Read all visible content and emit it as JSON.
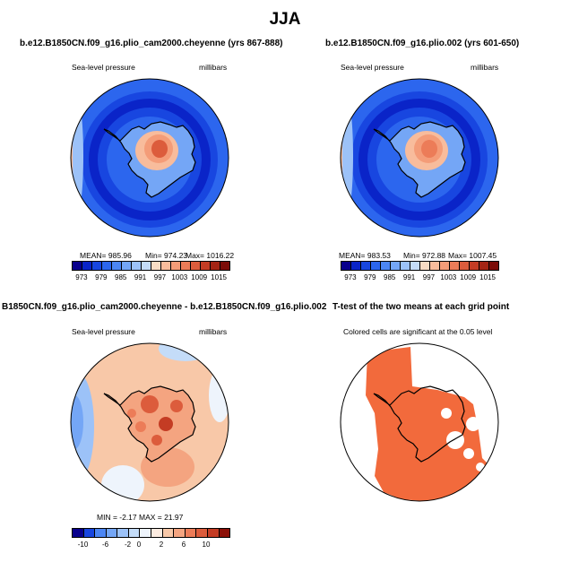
{
  "figure_title": "JJA",
  "chart_data": [
    {
      "type": "heatmap",
      "title": "b.e12.B1850CN.f09_g16.plio_cam2000.cheyenne (yrs 867-888)",
      "field": "Sea-level pressure",
      "units": "millibars",
      "stats": {
        "mean": "985.96",
        "min": "974.23",
        "max": "1016.22"
      },
      "stats_text": {
        "mean": "MEAN= 985.96",
        "min": "Min= 974.23",
        "max": "Max= 1016.22"
      },
      "colorbar_ticks": [
        "973",
        "979",
        "985",
        "991",
        "997",
        "1003",
        "1009",
        "1015"
      ],
      "levels": [
        970,
        973,
        976,
        979,
        982,
        985,
        988,
        991,
        994,
        997,
        1000,
        1003,
        1006,
        1009,
        1012,
        1015,
        1018
      ]
    },
    {
      "type": "heatmap",
      "title": "b.e12.B1850CN.f09_g16.plio.002 (yrs 601-650)",
      "field": "Sea-level pressure",
      "units": "millibars",
      "stats": {
        "mean": "983.53",
        "min": "972.88",
        "max": "1007.45"
      },
      "stats_text": {
        "mean": "MEAN= 983.53",
        "min": "Min= 972.88",
        "max": "Max= 1007.45"
      },
      "colorbar_ticks": [
        "973",
        "979",
        "985",
        "991",
        "997",
        "1003",
        "1009",
        "1015"
      ],
      "levels": [
        970,
        973,
        976,
        979,
        982,
        985,
        988,
        991,
        994,
        997,
        1000,
        1003,
        1006,
        1009,
        1012,
        1015,
        1018
      ]
    },
    {
      "type": "heatmap",
      "title": "B1850CN.f09_g16.plio_cam2000.cheyenne - b.e12.B1850CN.f09_g16.plio.002",
      "field": "Sea-level pressure",
      "units": "millibars",
      "stats": {
        "min": "-2.17",
        "max": "21.97"
      },
      "stats_text": "MIN =  -2.17  MAX =  21.97",
      "colorbar_ticks": [
        "-10",
        "-6",
        "-2",
        "0",
        "2",
        "6",
        "10"
      ]
    },
    {
      "type": "heatmap",
      "title": "T-test of the two means at each grid point",
      "subtitle": "Colored cells are significant at the 0.05 level"
    }
  ],
  "colors": {
    "slp_palette": [
      "#08008c",
      "#0a24c8",
      "#1846e0",
      "#2c66ee",
      "#4c86f4",
      "#74a6f6",
      "#9cc2f8",
      "#c4dcf8",
      "#f8dcc4",
      "#f8bc9c",
      "#f49c78",
      "#ec7c58",
      "#dc5c3c",
      "#c43c24",
      "#a42414",
      "#7c0c08"
    ],
    "diff_palette": [
      "#08008c",
      "#1846e0",
      "#4c86f4",
      "#74a6f6",
      "#9cc2f8",
      "#c4dcf8",
      "#eef4fc",
      "#fcebe0",
      "#f8c8a8",
      "#f4a480",
      "#ec7c58",
      "#dc5c3c",
      "#c43c24",
      "#8c1008"
    ],
    "ttest": "#f26a3c"
  }
}
